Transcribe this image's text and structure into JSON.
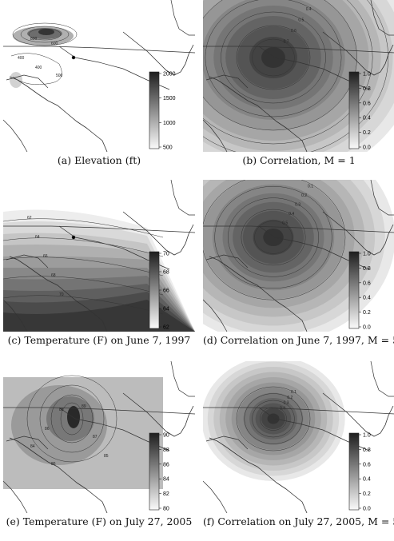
{
  "panels": [
    {
      "id": "a",
      "caption": "(a) Elevation (ft)",
      "colorbar": {
        "ticks": [
          "2000",
          "1500",
          "1000",
          "500"
        ],
        "dark_value_top": true
      },
      "field": {
        "type": "mountains"
      },
      "has_site_marker": true,
      "contour_labels": [
        "400",
        "600",
        "400",
        "800",
        "500"
      ]
    },
    {
      "id": "b",
      "caption": "(b) Correlation, M = 1",
      "colorbar": {
        "ticks": [
          "1.0",
          "0.8",
          "0.6",
          "0.4",
          "0.2",
          "0.0"
        ],
        "dark_value_top": true
      },
      "field": {
        "type": "radial",
        "spread": 1.0
      },
      "has_site_marker": false,
      "contour_labels": [
        "0.7",
        "0.6",
        "0.5",
        "0.4",
        "0.3",
        "0.2",
        "0.1"
      ]
    },
    {
      "id": "c",
      "caption": "(c) Temperature (F) on June 7, 1997",
      "colorbar": {
        "ticks": [
          "70",
          "68",
          "66",
          "64",
          "62"
        ],
        "dark_value_top": true
      },
      "field": {
        "type": "gradient_sw"
      },
      "has_site_marker": true,
      "contour_labels": [
        "62",
        "64",
        "66",
        "68",
        "70"
      ]
    },
    {
      "id": "d",
      "caption": "(d) Correlation on June 7, 1997, M = 5",
      "colorbar": {
        "ticks": [
          "1.0",
          "0.8",
          "0.6",
          "0.4",
          "0.2",
          "0.0"
        ],
        "dark_value_top": true
      },
      "field": {
        "type": "radial",
        "spread": 0.85
      },
      "has_site_marker": false,
      "contour_labels": [
        "0.5",
        "0.4",
        "0.3",
        "0.2",
        "0.1"
      ]
    },
    {
      "id": "e",
      "caption": "(e) Temperature (F) on July 27, 2005",
      "colorbar": {
        "ticks": [
          "90",
          "88",
          "86",
          "84",
          "82",
          "80"
        ],
        "dark_value_top": true
      },
      "field": {
        "type": "hot_center"
      },
      "has_site_marker": false,
      "contour_labels": [
        "88",
        "89",
        "86",
        "87",
        "84",
        "85",
        "86"
      ]
    },
    {
      "id": "f",
      "caption": "(f) Correlation on July 27, 2005, M = 5",
      "colorbar": {
        "ticks": [
          "1.0",
          "0.8",
          "0.6",
          "0.4",
          "0.2",
          "0.0"
        ],
        "dark_value_top": true
      },
      "field": {
        "type": "radial",
        "spread": 0.5
      },
      "has_site_marker": false,
      "contour_labels": [
        "0.4",
        "0.3",
        "0.2",
        "0.1"
      ]
    }
  ]
}
